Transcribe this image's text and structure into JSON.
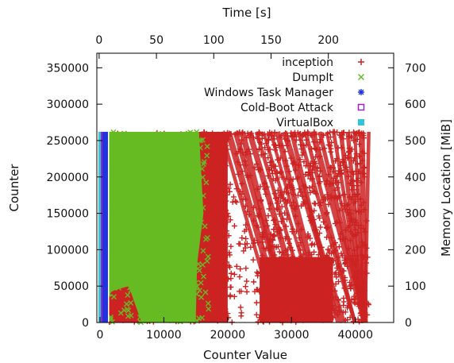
{
  "chart_data": {
    "type": "scatter",
    "title": "",
    "xlabel": "Counter Value",
    "ylabel": "Counter",
    "x2label": "Time [s]",
    "y2label": "Memory Location [MiB]",
    "xlim": [
      -500,
      46000
    ],
    "ylim": [
      0,
      370000
    ],
    "x2lim": [
      -2,
      257
    ],
    "y2lim": [
      0,
      740
    ],
    "xticks": [
      "0",
      "10000",
      "20000",
      "30000",
      "40000"
    ],
    "yticks": [
      "0",
      "50000",
      "100000",
      "150000",
      "200000",
      "250000",
      "300000",
      "350000"
    ],
    "x2ticks": [
      "0",
      "50",
      "100",
      "150",
      "200"
    ],
    "y2ticks": [
      "0",
      "100",
      "200",
      "300",
      "400",
      "500",
      "600",
      "700"
    ],
    "legend_position": "top-right",
    "series": [
      {
        "name": "inception",
        "marker": "+",
        "color": "#cc2222",
        "region": {
          "x_min": 0,
          "x_max": 42000,
          "y_min": 0,
          "y_max": 262000
        },
        "density": "very dense"
      },
      {
        "name": "DumpIt",
        "marker": "x",
        "color": "#66bb22",
        "region": {
          "x_min": 1000,
          "x_max": 17000,
          "y_min": 0,
          "y_max": 262000
        },
        "density": "very dense"
      },
      {
        "name": "Windows Task Manager",
        "marker": "*",
        "color": "#2233dd",
        "region": {
          "x_min": 0,
          "x_max": 1100,
          "y_min": 0,
          "y_max": 262000
        },
        "density": "solid band"
      },
      {
        "name": "Cold-Boot Attack",
        "marker": "square",
        "color": "#9922cc",
        "region": {
          "x_min": 0,
          "x_max": 300,
          "y_min": 0,
          "y_max": 262000
        },
        "density": "solid band"
      },
      {
        "name": "VirtualBox",
        "marker": "filled-square",
        "color": "#33c4d4",
        "region": {
          "x_min": 0,
          "x_max": 400,
          "y_min": 0,
          "y_max": 262000
        },
        "density": "solid band"
      }
    ]
  }
}
